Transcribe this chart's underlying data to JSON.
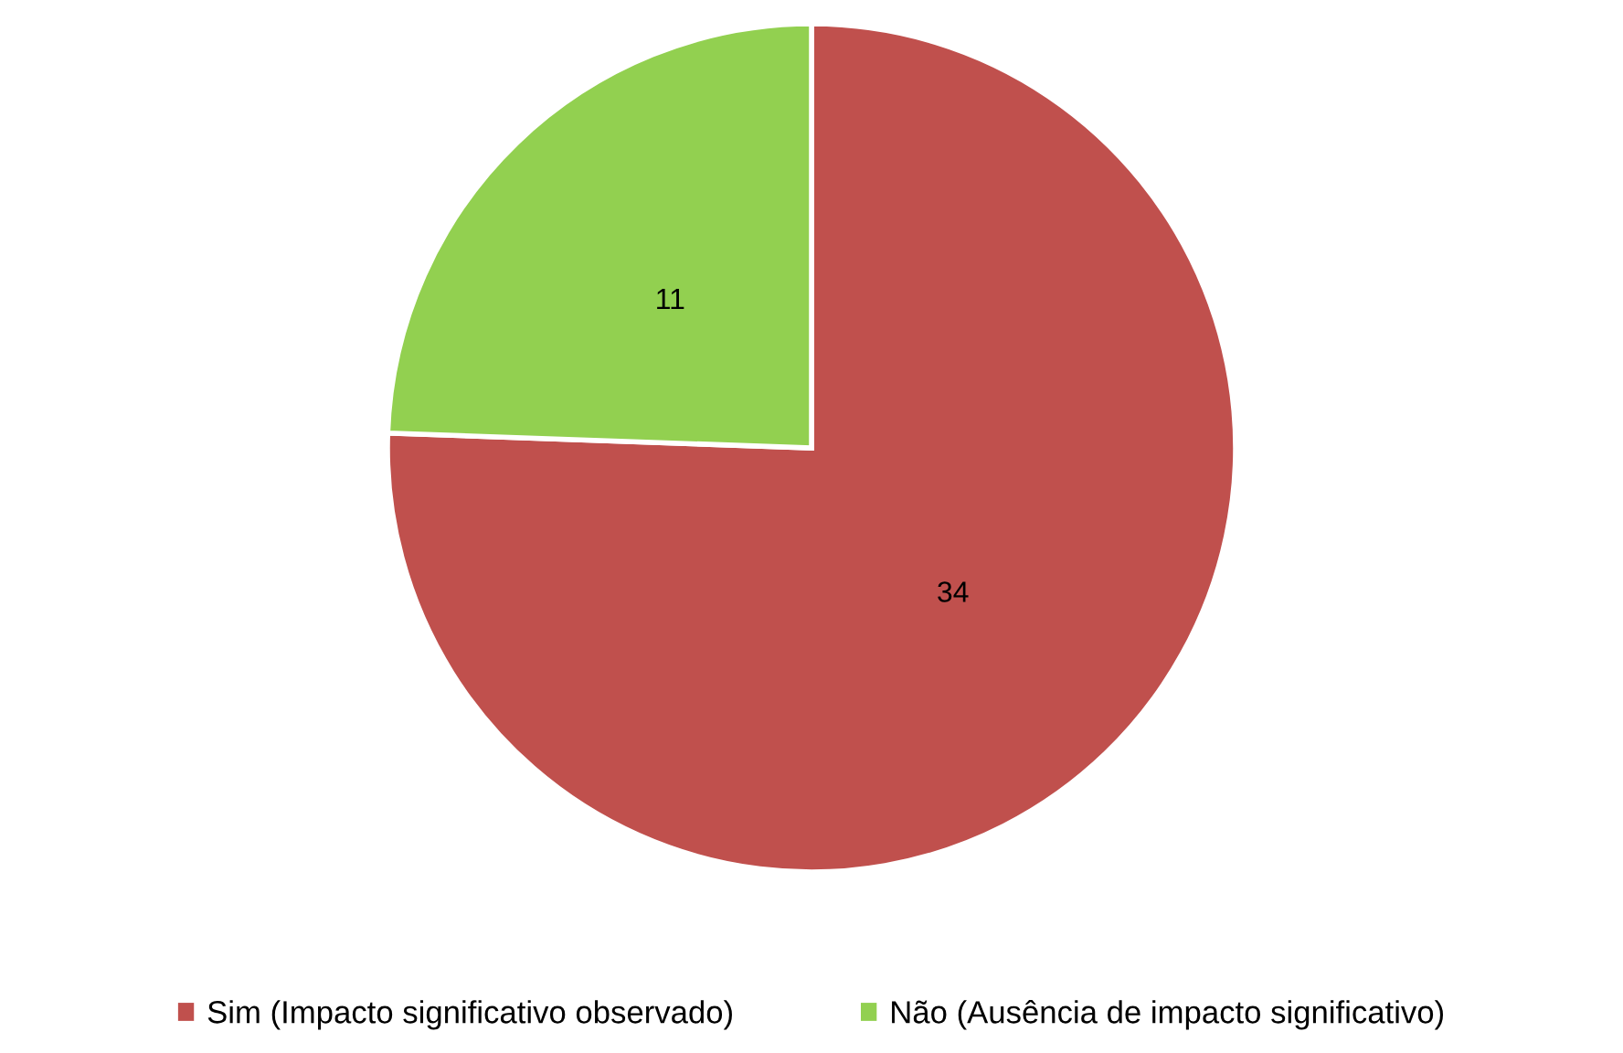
{
  "chart_data": {
    "type": "pie",
    "categories": [
      "Sim (Impacto significativo observado)",
      "Não (Ausência de impacto significativo)"
    ],
    "values": [
      34,
      11
    ],
    "colors": [
      "#c0504d",
      "#92d050"
    ],
    "data_labels": true,
    "legend": "bottom"
  }
}
